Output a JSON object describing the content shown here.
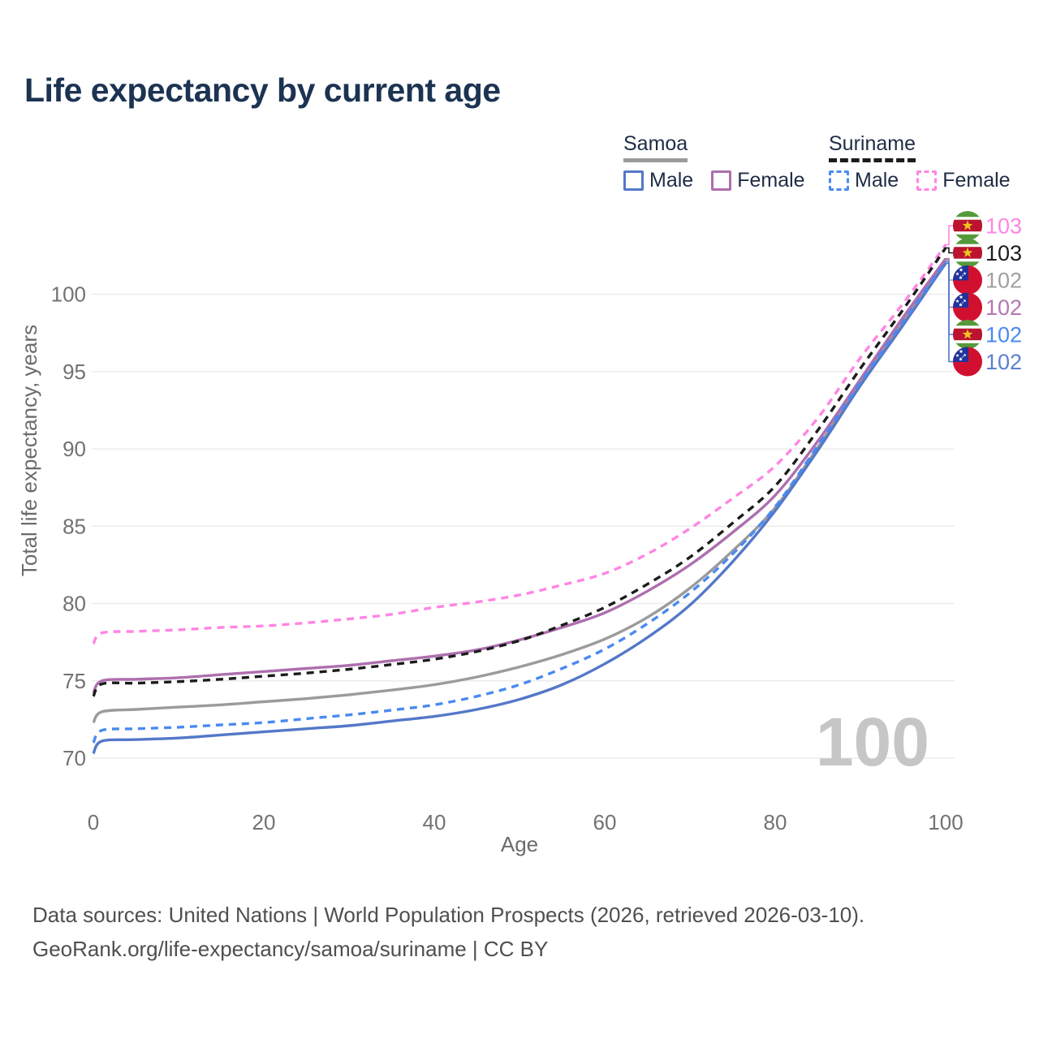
{
  "page": {
    "title": "Life expectancy by current age"
  },
  "legend": {
    "groups": [
      {
        "name": "Samoa",
        "line_style": "solid",
        "underline_color": "#9b9b9b",
        "items": [
          {
            "label": "Male",
            "color": "#5478c8",
            "style": "solid"
          },
          {
            "label": "Female",
            "color": "#ad6fae",
            "style": "solid"
          }
        ]
      },
      {
        "name": "Suriname",
        "line_style": "dashed",
        "underline_color": "#1c1c1c",
        "items": [
          {
            "label": "Male",
            "color": "#4a8af0",
            "style": "dashed"
          },
          {
            "label": "Female",
            "color": "#ff85e3",
            "style": "dashed"
          }
        ]
      }
    ]
  },
  "chart_data": {
    "type": "line",
    "title": "Life expectancy by current age",
    "xlabel": "Age",
    "ylabel": "Total life expectancy, years",
    "xlim": [
      0,
      100
    ],
    "ylim": [
      68,
      104
    ],
    "x_ticks": [
      0,
      20,
      40,
      60,
      80,
      100
    ],
    "y_ticks": [
      70,
      75,
      80,
      85,
      90,
      95,
      100
    ],
    "grid": "horizontal",
    "legend_position": "top-right",
    "watermark": "100",
    "ages": [
      0,
      1,
      5,
      10,
      15,
      20,
      25,
      30,
      35,
      40,
      45,
      50,
      55,
      60,
      65,
      70,
      75,
      80,
      85,
      90,
      95,
      100
    ],
    "series": [
      {
        "name": "Suriname Female",
        "country": "suriname",
        "flag": "suriname-flag",
        "color": "#ff85e3",
        "label_color": "#ff85e3",
        "dashed": true,
        "end_label": "103",
        "values": [
          77.4,
          78.1,
          78.2,
          78.3,
          78.45,
          78.55,
          78.75,
          79.0,
          79.3,
          79.75,
          80.1,
          80.55,
          81.2,
          81.95,
          83.2,
          84.85,
          86.8,
          88.9,
          92.0,
          95.9,
          99.4,
          103.2
        ]
      },
      {
        "name": "Suriname",
        "country": "suriname",
        "flag": "suriname-flag",
        "color": "#1c1c1c",
        "label_color": "#1c1c1c",
        "dashed": true,
        "end_label": "103",
        "values": [
          74.0,
          74.8,
          74.85,
          74.95,
          75.1,
          75.3,
          75.5,
          75.75,
          76.05,
          76.4,
          76.9,
          77.6,
          78.6,
          79.75,
          81.25,
          83.0,
          85.2,
          87.6,
          91.2,
          95.2,
          99.0,
          103.0
        ]
      },
      {
        "name": "Samoa",
        "country": "samoa",
        "flag": "samoa-flag",
        "color": "#9b9b9b",
        "label_color": "#a0a0a0",
        "dashed": false,
        "end_label": "102",
        "values": [
          72.3,
          73.0,
          73.15,
          73.3,
          73.45,
          73.65,
          73.85,
          74.1,
          74.4,
          74.75,
          75.25,
          75.9,
          76.7,
          77.7,
          79.1,
          81.0,
          83.4,
          86.2,
          90.1,
          94.3,
          98.3,
          102.2
        ]
      },
      {
        "name": "Samoa Female",
        "country": "samoa",
        "flag": "samoa-flag",
        "color": "#ad6fae",
        "label_color": "#b377b1",
        "dashed": false,
        "end_label": "102",
        "values": [
          74.2,
          75.0,
          75.1,
          75.2,
          75.4,
          75.6,
          75.8,
          76.0,
          76.3,
          76.6,
          77.0,
          77.65,
          78.45,
          79.4,
          80.8,
          82.5,
          84.6,
          87.0,
          90.5,
          94.5,
          98.5,
          102.3
        ]
      },
      {
        "name": "Suriname Male",
        "country": "suriname",
        "flag": "suriname-flag",
        "color": "#4a8af0",
        "label_color": "#4a8af0",
        "dashed": true,
        "end_label": "102",
        "values": [
          71.0,
          71.8,
          71.9,
          72.0,
          72.15,
          72.3,
          72.55,
          72.8,
          73.1,
          73.45,
          74.0,
          74.75,
          75.8,
          77.05,
          78.7,
          80.7,
          83.2,
          86.25,
          90.2,
          94.3,
          98.2,
          102.1
        ]
      },
      {
        "name": "Samoa Male",
        "country": "samoa",
        "flag": "samoa-flag",
        "color": "#5478c8",
        "label_color": "#5b80ce",
        "dashed": false,
        "end_label": "102",
        "values": [
          70.3,
          71.1,
          71.2,
          71.3,
          71.5,
          71.7,
          71.9,
          72.1,
          72.4,
          72.7,
          73.15,
          73.8,
          74.75,
          76.1,
          77.8,
          79.9,
          82.7,
          86.0,
          89.9,
          94.1,
          98.0,
          102.0
        ]
      }
    ]
  },
  "footer": {
    "line1": "Data sources: United Nations | World Population Prospects (2026, retrieved 2026-03-10).",
    "line2": "GeoRank.org/life-expectancy/samoa/suriname | CC BY"
  }
}
